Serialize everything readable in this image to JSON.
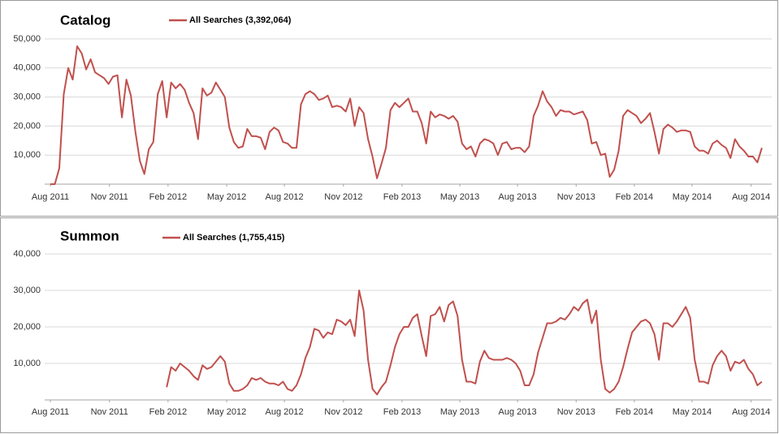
{
  "chart_data": [
    {
      "type": "line",
      "title": "Catalog",
      "grid": true,
      "xlim": [
        -4.9,
        161.2
      ],
      "ylim": [
        0,
        50000
      ],
      "yticks": [
        {
          "value": 10000,
          "label": "10,000"
        },
        {
          "value": 20000,
          "label": "20,000"
        },
        {
          "value": 30000,
          "label": "30,000"
        },
        {
          "value": 40000,
          "label": "40,000"
        },
        {
          "value": 50000,
          "label": "50,000"
        }
      ],
      "xticks": [
        {
          "value": 0,
          "label": "Aug 2011"
        },
        {
          "value": 13.2,
          "label": "Nov 2011"
        },
        {
          "value": 26.3,
          "label": "Feb 2012"
        },
        {
          "value": 39.4,
          "label": "May 2012"
        },
        {
          "value": 52.3,
          "label": "Aug 2012"
        },
        {
          "value": 65.5,
          "label": "Nov 2012"
        },
        {
          "value": 78.6,
          "label": "Feb 2013"
        },
        {
          "value": 91.5,
          "label": "May 2013"
        },
        {
          "value": 104.4,
          "label": "Aug 2013"
        },
        {
          "value": 117.5,
          "label": "Nov 2013"
        },
        {
          "value": 130.5,
          "label": "Feb 2014"
        },
        {
          "value": 143.4,
          "label": "May 2014"
        },
        {
          "value": 156.6,
          "label": "Aug 2014"
        }
      ],
      "x": [
        0,
        1,
        2,
        3,
        4,
        5,
        6,
        7,
        8,
        9,
        10,
        11,
        12,
        13,
        14,
        15,
        16,
        17,
        18,
        19,
        20,
        21,
        22,
        23,
        24,
        25,
        26,
        27,
        28,
        29,
        30,
        31,
        32,
        33,
        34,
        35,
        36,
        37,
        38,
        39,
        40,
        41,
        42,
        43,
        44,
        45,
        46,
        47,
        48,
        49,
        50,
        51,
        52,
        53,
        54,
        55,
        56,
        57,
        58,
        59,
        60,
        61,
        62,
        63,
        64,
        65,
        66,
        67,
        68,
        69,
        70,
        71,
        72,
        73,
        74,
        75,
        76,
        77,
        78,
        79,
        80,
        81,
        82,
        83,
        84,
        85,
        86,
        87,
        88,
        89,
        90,
        91,
        92,
        93,
        94,
        95,
        96,
        97,
        98,
        99,
        100,
        101,
        102,
        103,
        104,
        105,
        106,
        107,
        108,
        109,
        110,
        111,
        112,
        113,
        114,
        115,
        116,
        117,
        118,
        119,
        120,
        121,
        122,
        123,
        124,
        125,
        126,
        127,
        128,
        129,
        130,
        131,
        132,
        133,
        134,
        135,
        136,
        137,
        138,
        139,
        140,
        141,
        142,
        143,
        144,
        145,
        146,
        147,
        148,
        149,
        150,
        151,
        152,
        153,
        154,
        155,
        156,
        157,
        158,
        159
      ],
      "series": [
        {
          "name": "All Searches (3,392,064)",
          "color": "#c0504d",
          "values": [
            0,
            0,
            5500,
            31000,
            40000,
            36000,
            47500,
            45000,
            39500,
            43000,
            38500,
            37500,
            36500,
            34500,
            37000,
            37500,
            23000,
            36000,
            30500,
            18000,
            8000,
            3500,
            12000,
            14500,
            31000,
            35500,
            23000,
            35000,
            33000,
            34500,
            32500,
            28000,
            24500,
            15500,
            33000,
            30500,
            31500,
            35000,
            32500,
            30000,
            19500,
            14500,
            12500,
            13000,
            19000,
            16500,
            16500,
            16000,
            12000,
            18000,
            19500,
            18500,
            14500,
            14000,
            12500,
            12500,
            27500,
            31000,
            32000,
            31000,
            29000,
            29500,
            30500,
            26500,
            27000,
            26500,
            25000,
            29500,
            20000,
            26500,
            24500,
            15500,
            9500,
            2000,
            7000,
            12500,
            25500,
            28000,
            26500,
            28000,
            29500,
            25000,
            25000,
            21000,
            14000,
            25000,
            23000,
            24000,
            23500,
            22500,
            23500,
            21500,
            14000,
            12000,
            13000,
            9500,
            14000,
            15500,
            15000,
            14000,
            10000,
            14000,
            14500,
            12000,
            12500,
            12500,
            11000,
            13000,
            23500,
            27000,
            32000,
            28500,
            26500,
            23500,
            25500,
            25000,
            25000,
            24000,
            24500,
            25000,
            22000,
            14000,
            14500,
            10000,
            10500,
            2500,
            5000,
            11500,
            23500,
            25500,
            24500,
            23500,
            21000,
            22500,
            24500,
            18000,
            10500,
            19000,
            20500,
            19500,
            18000,
            18500,
            18500,
            18000,
            13000,
            11500,
            11500,
            10500,
            14000,
            15000,
            13500,
            12500,
            9000,
            15500,
            13000,
            11500,
            9500,
            9500,
            7500,
            12500
          ]
        }
      ]
    },
    {
      "type": "line",
      "title": "Summon",
      "grid": true,
      "xlim": [
        -4.9,
        161.2
      ],
      "ylim": [
        0,
        40000
      ],
      "yticks": [
        {
          "value": 10000,
          "label": "10,000"
        },
        {
          "value": 20000,
          "label": "20,000"
        },
        {
          "value": 30000,
          "label": "30,000"
        },
        {
          "value": 40000,
          "label": "40,000"
        }
      ],
      "xticks": [
        {
          "value": 0,
          "label": "Aug 2011"
        },
        {
          "value": 13.2,
          "label": "Nov 2011"
        },
        {
          "value": 26.3,
          "label": "Feb 2012"
        },
        {
          "value": 39.4,
          "label": "May 2012"
        },
        {
          "value": 52.3,
          "label": "Aug 2012"
        },
        {
          "value": 65.5,
          "label": "Nov 2012"
        },
        {
          "value": 78.6,
          "label": "Feb 2013"
        },
        {
          "value": 91.5,
          "label": "May 2013"
        },
        {
          "value": 104.4,
          "label": "Aug 2013"
        },
        {
          "value": 117.5,
          "label": "Nov 2013"
        },
        {
          "value": 130.5,
          "label": "Feb 2014"
        },
        {
          "value": 143.4,
          "label": "May 2014"
        },
        {
          "value": 156.6,
          "label": "Aug 2014"
        }
      ],
      "x": [
        26,
        27,
        28,
        29,
        30,
        31,
        32,
        33,
        34,
        35,
        36,
        37,
        38,
        39,
        40,
        41,
        42,
        43,
        44,
        45,
        46,
        47,
        48,
        49,
        50,
        51,
        52,
        53,
        54,
        55,
        56,
        57,
        58,
        59,
        60,
        61,
        62,
        63,
        64,
        65,
        66,
        67,
        68,
        69,
        70,
        71,
        72,
        73,
        74,
        75,
        76,
        77,
        78,
        79,
        80,
        81,
        82,
        83,
        84,
        85,
        86,
        87,
        88,
        89,
        90,
        91,
        92,
        93,
        94,
        95,
        96,
        97,
        98,
        99,
        100,
        101,
        102,
        103,
        104,
        105,
        106,
        107,
        108,
        109,
        110,
        111,
        112,
        113,
        114,
        115,
        116,
        117,
        118,
        119,
        120,
        121,
        122,
        123,
        124,
        125,
        126,
        127,
        128,
        129,
        130,
        131,
        132,
        133,
        134,
        135,
        136,
        137,
        138,
        139,
        140,
        141,
        142,
        143,
        144,
        145,
        146,
        147,
        148,
        149,
        150,
        151,
        152,
        153,
        154,
        155,
        156,
        157,
        158,
        159
      ],
      "series": [
        {
          "name": "All Searches (1,755,415)",
          "color": "#c0504d",
          "values": [
            3500,
            9000,
            8000,
            10000,
            9000,
            8000,
            6500,
            5500,
            9500,
            8500,
            9000,
            10500,
            12000,
            10500,
            4500,
            2500,
            2500,
            3000,
            4000,
            6000,
            5500,
            6000,
            5000,
            4500,
            4500,
            4000,
            5000,
            3000,
            2500,
            4000,
            7000,
            11500,
            14500,
            19500,
            19000,
            17000,
            18500,
            18000,
            22000,
            21500,
            20500,
            22000,
            17500,
            30000,
            24500,
            11000,
            3000,
            1500,
            3500,
            5000,
            9500,
            14500,
            18000,
            20000,
            20000,
            22500,
            23500,
            17500,
            12000,
            23000,
            23500,
            25500,
            21500,
            26000,
            27000,
            23000,
            11000,
            5000,
            5000,
            4500,
            10500,
            13500,
            11500,
            11000,
            11000,
            11000,
            11500,
            11000,
            10000,
            8000,
            4000,
            4000,
            7000,
            13000,
            17000,
            21000,
            21000,
            21500,
            22500,
            22000,
            23500,
            25500,
            24500,
            26500,
            27500,
            21000,
            24500,
            11000,
            3000,
            2000,
            3000,
            5000,
            9000,
            14000,
            18500,
            20000,
            21500,
            22000,
            21000,
            18000,
            11000,
            21000,
            21000,
            20000,
            21500,
            23500,
            25500,
            22500,
            11000,
            5000,
            5000,
            4500,
            9500,
            12000,
            13500,
            12000,
            8000,
            10500,
            10000,
            11000,
            8500,
            7000,
            4000,
            5000
          ]
        }
      ]
    }
  ]
}
